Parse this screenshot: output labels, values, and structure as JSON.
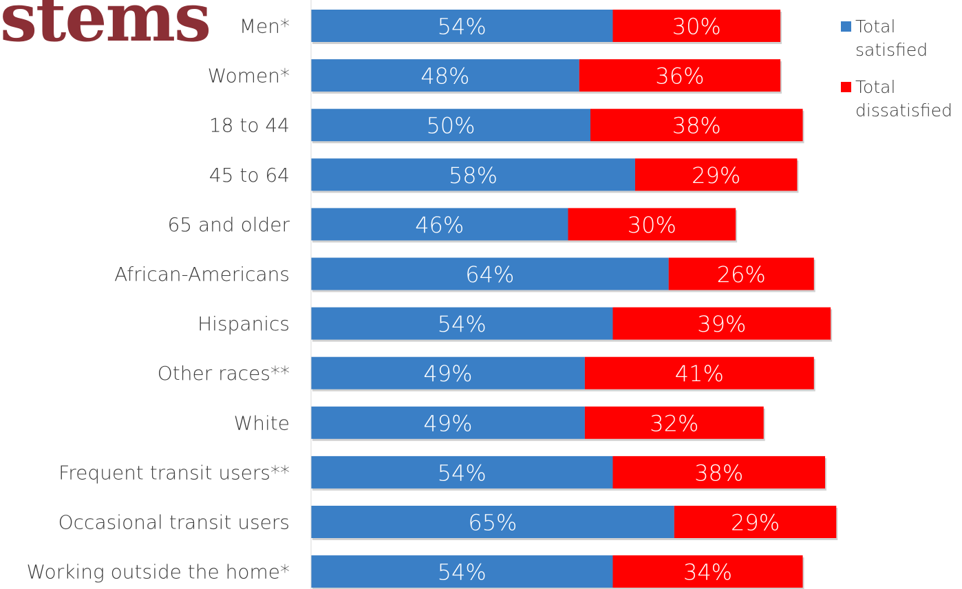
{
  "title_fragment": "stems",
  "colors": {
    "satisfied": "#3a7fc6",
    "dissatisfied": "#ff0000",
    "title": "#8b2f35",
    "label": "#3d3d3d"
  },
  "chart_data": {
    "type": "bar",
    "orientation": "horizontal",
    "stacked": true,
    "categories": [
      "Men*",
      "Women*",
      "18 to 44",
      "45 to 64",
      "65 and older",
      "African-Americans",
      "Hispanics",
      "Other races**",
      "White",
      "Frequent transit users**",
      "Occasional transit users",
      "Working outside the home*"
    ],
    "series": [
      {
        "name": "Total satisfied",
        "color": "#3a7fc6",
        "values": [
          54,
          48,
          50,
          58,
          46,
          64,
          54,
          49,
          49,
          54,
          65,
          54
        ],
        "labels": [
          "54%",
          "48%",
          "50%",
          "58%",
          "46%",
          "64%",
          "54%",
          "49%",
          "49%",
          "54%",
          "65%",
          "54%"
        ]
      },
      {
        "name": "Total dissatisfied",
        "color": "#ff0000",
        "values": [
          30,
          36,
          38,
          29,
          30,
          26,
          39,
          41,
          32,
          38,
          29,
          34
        ],
        "labels": [
          "30%",
          "36%",
          "38%",
          "29%",
          "30%",
          "26%",
          "39%",
          "41%",
          "32%",
          "38%",
          "29%",
          "34%"
        ]
      }
    ],
    "xlim": [
      0,
      100
    ],
    "grid": false,
    "legend_position": "top-right"
  },
  "legend": {
    "items": [
      {
        "label": "Total satisfied",
        "color": "#3a7fc6"
      },
      {
        "label": "Total dissatisfied",
        "color": "#ff0000"
      }
    ]
  }
}
